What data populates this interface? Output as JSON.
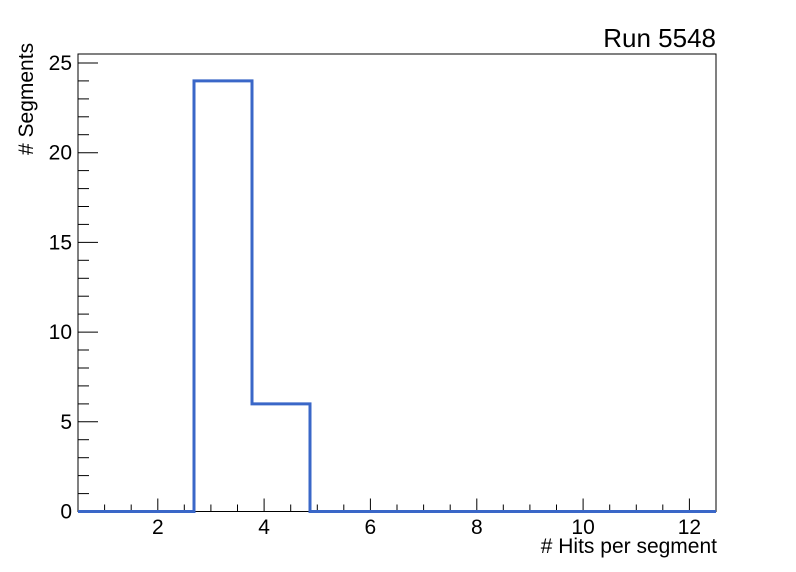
{
  "chart_data": {
    "type": "histogram",
    "title": "Run 5548",
    "xlabel": "# Hits per segment",
    "ylabel": "# Segments",
    "xlim": [
      0.5,
      12.5
    ],
    "ylim": [
      0,
      25.5
    ],
    "n_bins": 11,
    "bin_edges": [
      0.5,
      1.5909,
      2.6818,
      3.7727,
      4.8636,
      5.9545,
      7.0455,
      8.1364,
      9.2273,
      10.3182,
      11.4091,
      12.5
    ],
    "values": [
      0,
      0,
      24,
      6,
      0,
      0,
      0,
      0,
      0,
      0,
      0
    ],
    "x_major_ticks": [
      2,
      4,
      6,
      8,
      10,
      12
    ],
    "x_minor_step": 0.5,
    "y_major_ticks": [
      0,
      5,
      10,
      15,
      20,
      25
    ],
    "y_minor_step": 1,
    "grid": false,
    "colors": {
      "line": "#3a67c8",
      "axis": "#000000",
      "text": "#000000",
      "background": "#ffffff"
    }
  }
}
